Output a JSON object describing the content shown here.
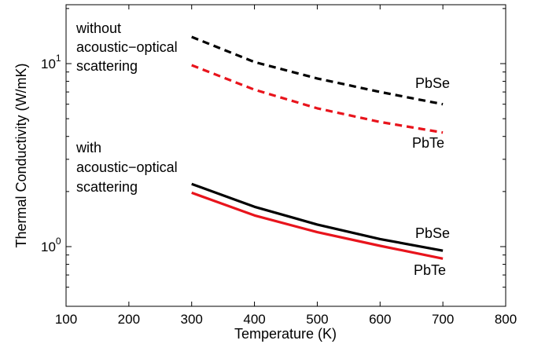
{
  "chart_data": {
    "type": "line",
    "title": "",
    "xlabel": "Temperature  (K)",
    "ylabel": "Thermal Conductivity  (W/mK)",
    "xlim": [
      100,
      800
    ],
    "ylim": [
      0.5,
      20
    ],
    "yscale": "log",
    "x_ticks": [
      100,
      200,
      300,
      400,
      500,
      600,
      700,
      800
    ],
    "y_ticks": [
      {
        "value": 1,
        "base": "10",
        "exponent": "0"
      },
      {
        "value": 10,
        "base": "10",
        "exponent": "1"
      }
    ],
    "x": [
      300,
      400,
      500,
      600,
      700
    ],
    "series": [
      {
        "name": "PbSe",
        "group": "without",
        "style": "dashed",
        "color": "#000000",
        "values": [
          14.0,
          10.2,
          8.3,
          7.0,
          6.0
        ]
      },
      {
        "name": "PbTe",
        "group": "without",
        "style": "dashed",
        "color": "#e8141c",
        "values": [
          9.8,
          7.2,
          5.7,
          4.8,
          4.2
        ]
      },
      {
        "name": "PbSe",
        "group": "with",
        "style": "solid",
        "color": "#000000",
        "values": [
          2.2,
          1.65,
          1.32,
          1.1,
          0.95
        ]
      },
      {
        "name": "PbTe",
        "group": "with",
        "style": "solid",
        "color": "#e8141c",
        "values": [
          1.97,
          1.48,
          1.2,
          1.01,
          0.86
        ]
      }
    ],
    "annotations": {
      "without": [
        "without",
        "acoustic−optical",
        "scattering"
      ],
      "with": [
        "with",
        "acoustic−optical",
        "scattering"
      ]
    },
    "grid": false,
    "legend": "none"
  }
}
